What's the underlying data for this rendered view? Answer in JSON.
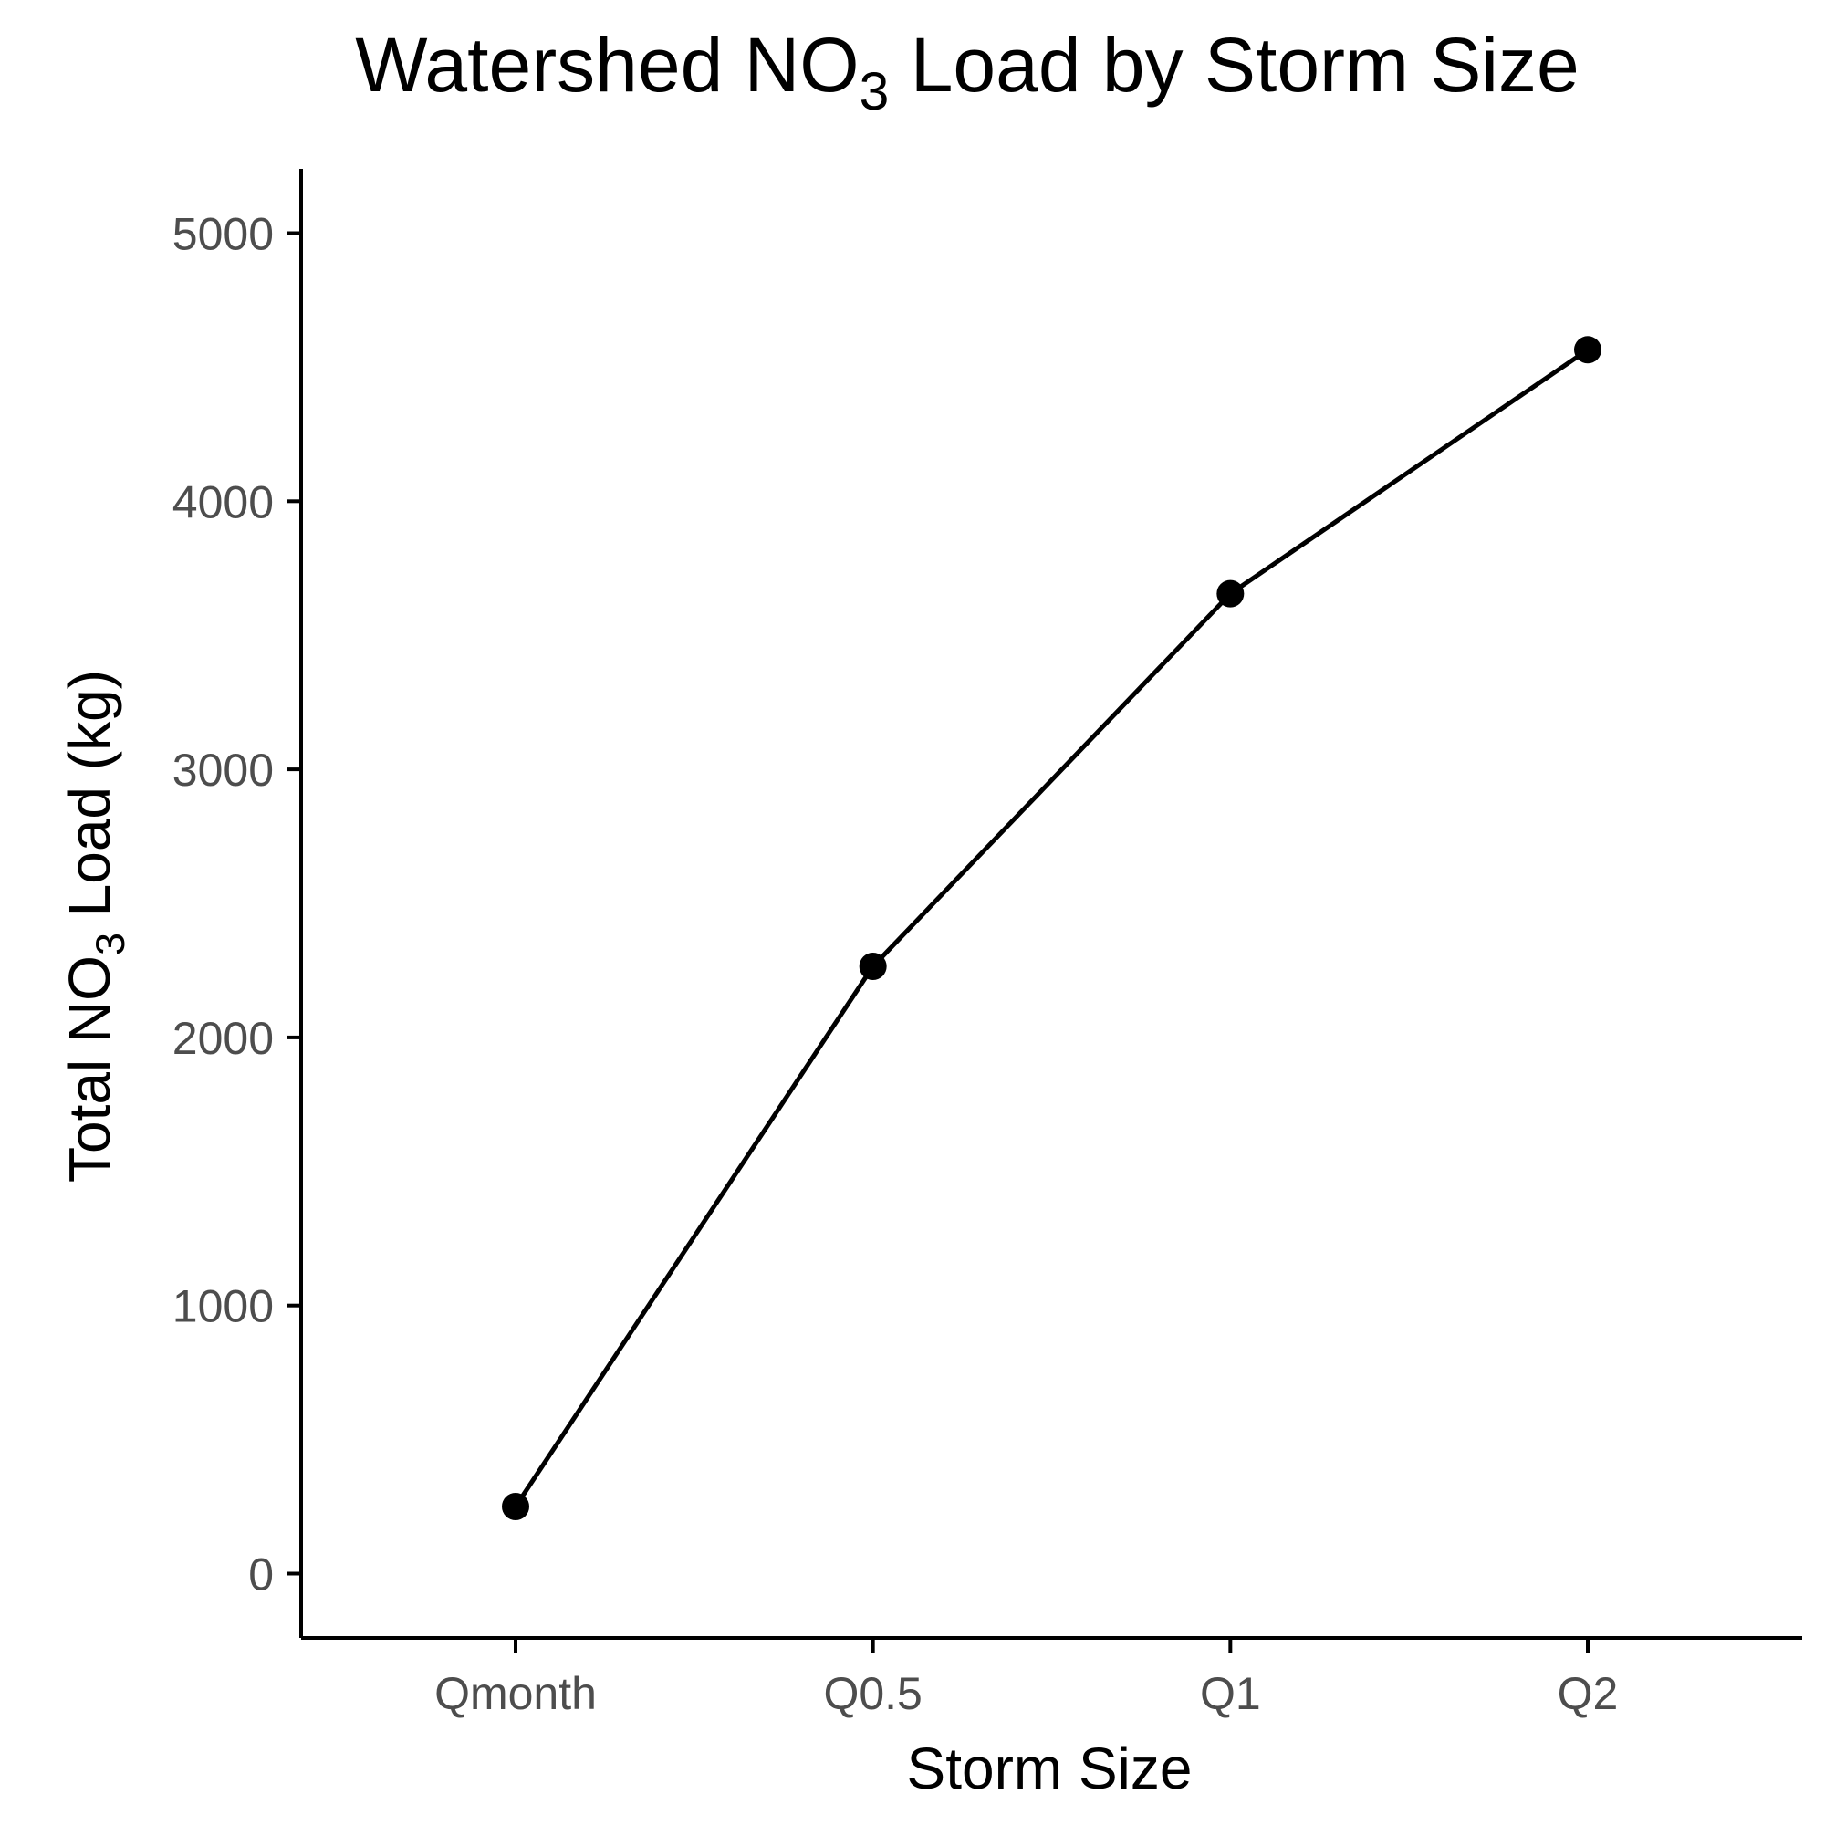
{
  "chart_data": {
    "type": "line",
    "title": {
      "pre": "Watershed NO",
      "sub": "3",
      "post": " Load by Storm Size"
    },
    "xlabel": "Storm Size",
    "ylabel": {
      "pre": "Total NO",
      "sub": "3",
      "post": " Load (kg)"
    },
    "categories": [
      "Qmonth",
      "Q0.5",
      "Q1",
      "Q2"
    ],
    "series": [
      {
        "values": [
          250,
          2265,
          3655,
          4565
        ]
      }
    ],
    "yticks": [
      0,
      1000,
      2000,
      3000,
      4000,
      5000
    ],
    "ylim": [
      -240,
      5240
    ],
    "grid": false,
    "legend": "none",
    "colors": {
      "line": "#000000",
      "point": "#000000",
      "axis": "#000000",
      "tick_label": "#4d4d4d"
    }
  }
}
